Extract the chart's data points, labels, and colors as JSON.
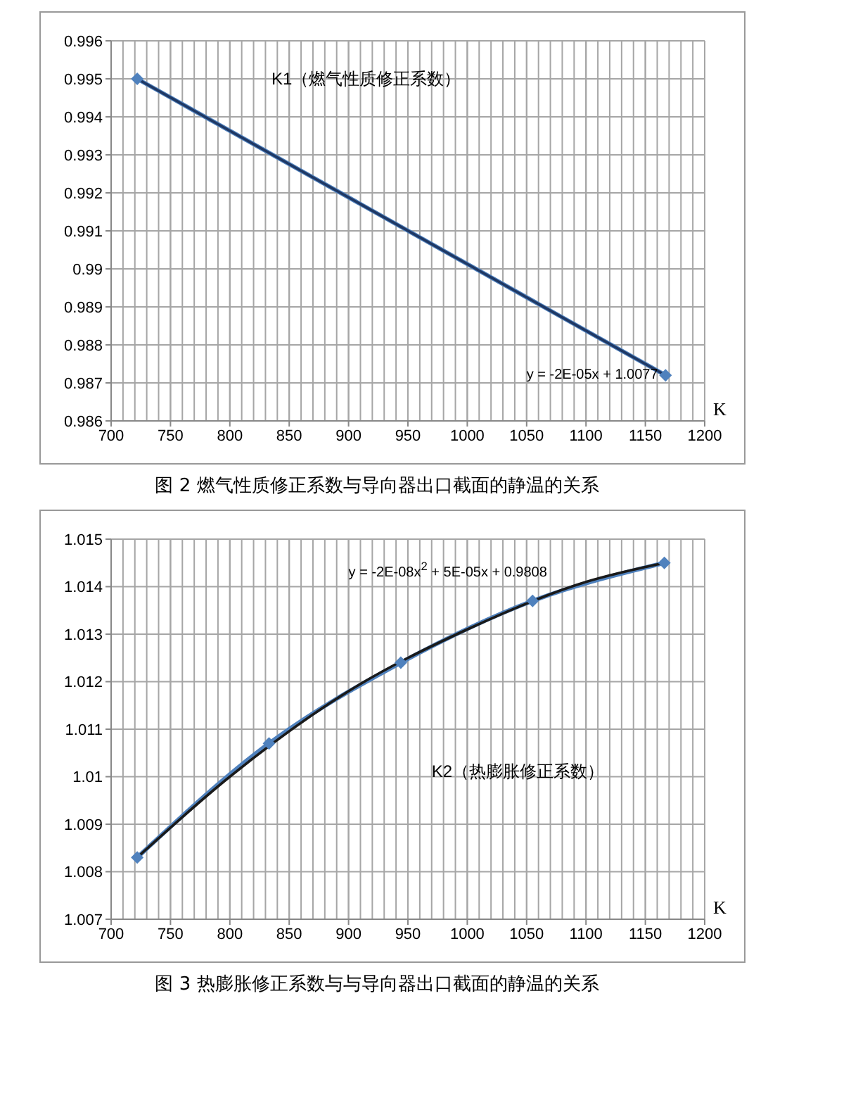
{
  "chart_data": [
    {
      "type": "line",
      "title": "图 2 燃气性质修正系数与导向器出口截面的静温的关系",
      "xlabel": "K",
      "annotations": [
        "K1（燃气性质修正系数）",
        "y = -2E-05x + 1.0077"
      ],
      "xlim": [
        700,
        1200
      ],
      "xticks": [
        700,
        750,
        800,
        850,
        900,
        950,
        1000,
        1050,
        1100,
        1150,
        1200
      ],
      "ylim": [
        0.986,
        0.996
      ],
      "yticks": [
        0.986,
        0.987,
        0.988,
        0.989,
        0.99,
        0.991,
        0.992,
        0.993,
        0.994,
        0.995,
        0.996
      ],
      "grid": true,
      "series": [
        {
          "color": "#4f81bd",
          "marker": "diamond",
          "x": [
            722,
            1167
          ],
          "values": [
            0.995,
            0.9872
          ]
        },
        {
          "color": "#1f3864",
          "marker": "none",
          "x": [
            722,
            1167
          ],
          "values": [
            0.995,
            0.9872
          ]
        }
      ]
    },
    {
      "type": "line",
      "title": "图 3 热膨胀修正系数与与导向器出口截面的静温的关系",
      "xlabel": "K",
      "annotations": [
        "y = -2E-08x$^{2}$ + 5E-05x + 0.9808",
        "K2（热膨胀修正系数）"
      ],
      "xlim": [
        700,
        1200
      ],
      "xticks": [
        700,
        750,
        800,
        850,
        900,
        950,
        1000,
        1050,
        1100,
        1150,
        1200
      ],
      "ylim": [
        1.007,
        1.015
      ],
      "yticks": [
        1.007,
        1.008,
        1.009,
        1.01,
        1.011,
        1.012,
        1.013,
        1.014,
        1.015
      ],
      "grid": true,
      "series": [
        {
          "color": "#4f81bd",
          "marker": "diamond",
          "x": [
            722,
            833,
            944,
            1055,
            1166
          ],
          "values": [
            1.0083,
            1.0107,
            1.0124,
            1.0137,
            1.0145
          ]
        },
        {
          "color": "#1a1a1a",
          "marker": "none",
          "x": [
            722,
            800,
            900,
            1000,
            1100,
            1166
          ],
          "values": [
            1.0083,
            1.01,
            1.0118,
            1.0131,
            1.0141,
            1.0145
          ]
        }
      ]
    }
  ]
}
